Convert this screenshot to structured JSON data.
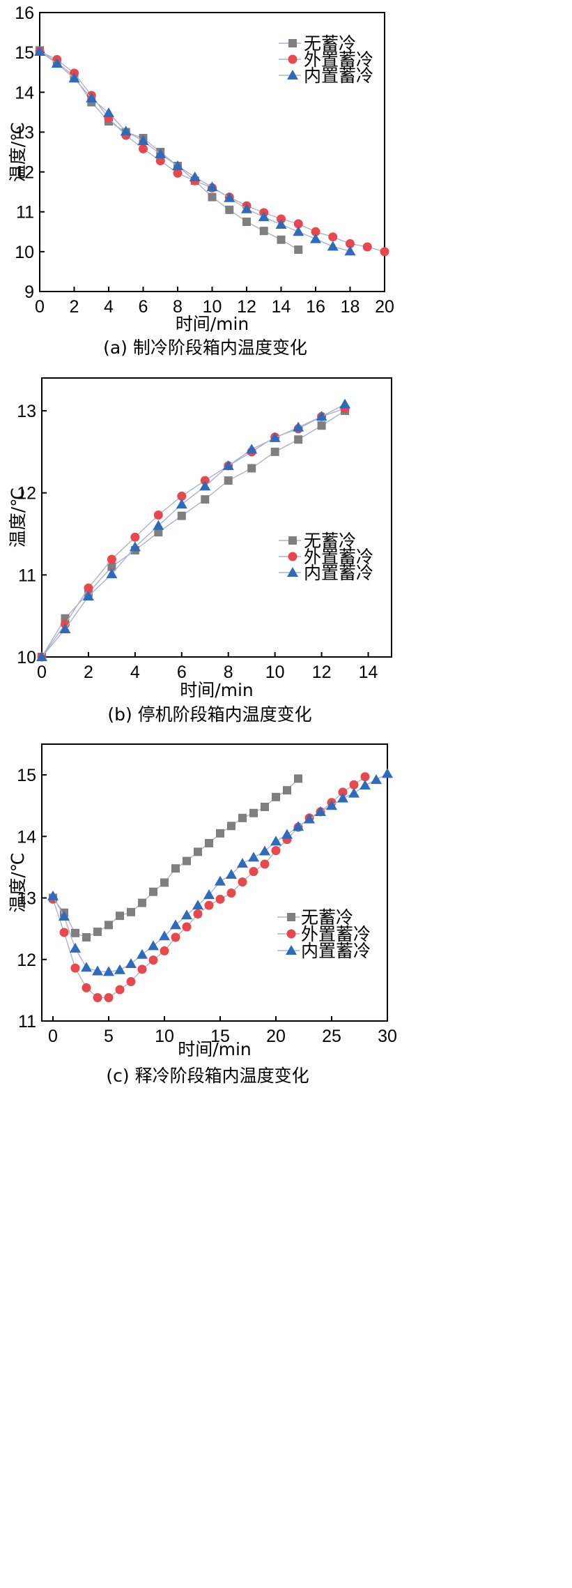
{
  "colors": {
    "无蓄冷": "#7f7f7f",
    "外置蓄冷": "#e8474d",
    "内置蓄冷": "#2e6bbd",
    "line": "#a8b4c8"
  },
  "chart_data": [
    {
      "type": "line",
      "caption": "(a) 制冷阶段箱内温度变化",
      "xlabel": "时间/min",
      "ylabel": "温度/℃",
      "xlim": [
        0,
        20
      ],
      "ylim": [
        9,
        16
      ],
      "xticks": [
        0,
        2,
        4,
        6,
        8,
        10,
        12,
        14,
        16,
        18,
        20
      ],
      "yticks": [
        9,
        10,
        11,
        12,
        13,
        14,
        15,
        16
      ],
      "legend": "upper-right",
      "series": [
        {
          "name": "无蓄冷",
          "marker": "square",
          "x": [
            0,
            1,
            2,
            3,
            4,
            5,
            6,
            7,
            8,
            9,
            10,
            11,
            12,
            13,
            14,
            15
          ],
          "y": [
            15.05,
            14.75,
            14.4,
            13.75,
            13.27,
            13.0,
            12.85,
            12.5,
            12.15,
            11.78,
            11.37,
            11.05,
            10.75,
            10.52,
            10.3,
            10.05
          ]
        },
        {
          "name": "外置蓄冷",
          "marker": "circle",
          "x": [
            0,
            1,
            2,
            3,
            4,
            5,
            6,
            7,
            8,
            9,
            10,
            11,
            12,
            13,
            14,
            15,
            16,
            17,
            18,
            19,
            20
          ],
          "y": [
            15.03,
            14.82,
            14.48,
            13.92,
            13.35,
            12.92,
            12.58,
            12.28,
            11.97,
            11.78,
            11.6,
            11.37,
            11.15,
            10.98,
            10.82,
            10.7,
            10.5,
            10.37,
            10.2,
            10.12,
            10.0
          ]
        },
        {
          "name": "内置蓄冷",
          "marker": "triangle",
          "x": [
            0,
            1,
            2,
            3,
            4,
            5,
            6,
            7,
            8,
            9,
            10,
            11,
            12,
            13,
            14,
            15,
            16,
            17,
            18
          ],
          "y": [
            15.02,
            14.72,
            14.35,
            13.85,
            13.48,
            13.02,
            12.78,
            12.45,
            12.15,
            11.87,
            11.62,
            11.35,
            11.07,
            10.87,
            10.68,
            10.5,
            10.32,
            10.13,
            10.01
          ]
        }
      ]
    },
    {
      "type": "line",
      "caption": "(b) 停机阶段箱内温度变化",
      "xlabel": "时间/min",
      "ylabel": "温度/℃",
      "xlim": [
        0,
        15
      ],
      "ylim": [
        10,
        13.4
      ],
      "xticks": [
        0,
        2,
        4,
        6,
        8,
        10,
        12,
        14
      ],
      "yticks": [
        10,
        11,
        12,
        13
      ],
      "legend": "right",
      "series": [
        {
          "name": "无蓄冷",
          "marker": "square",
          "x": [
            0,
            1,
            2,
            3,
            4,
            5,
            6,
            7,
            8,
            9,
            10,
            11,
            12,
            13
          ],
          "y": [
            10.0,
            10.47,
            10.78,
            11.1,
            11.3,
            11.52,
            11.72,
            11.92,
            12.15,
            12.3,
            12.5,
            12.65,
            12.82,
            13.0
          ]
        },
        {
          "name": "外置蓄冷",
          "marker": "circle",
          "x": [
            0,
            1,
            2,
            3,
            4,
            5,
            6,
            7,
            8,
            9,
            10,
            11,
            12,
            13
          ],
          "y": [
            10.0,
            10.4,
            10.84,
            11.19,
            11.46,
            11.73,
            11.96,
            12.15,
            12.33,
            12.5,
            12.68,
            12.78,
            12.93,
            13.03
          ]
        },
        {
          "name": "内置蓄冷",
          "marker": "triangle",
          "x": [
            0,
            1,
            2,
            3,
            4,
            5,
            6,
            7,
            8,
            9,
            10,
            11,
            12,
            13
          ],
          "y": [
            10.0,
            10.34,
            10.74,
            11.01,
            11.34,
            11.6,
            11.86,
            12.08,
            12.33,
            12.53,
            12.67,
            12.8,
            12.93,
            13.08
          ]
        }
      ]
    },
    {
      "type": "line",
      "caption": "(c) 释冷阶段箱内温度变化",
      "xlabel": "时间/min",
      "ylabel": "温度/℃",
      "xlim": [
        -1,
        30
      ],
      "ylim": [
        11,
        15.5
      ],
      "xticks": [
        0,
        5,
        10,
        15,
        20,
        25,
        30
      ],
      "yticks": [
        11,
        12,
        13,
        14,
        15
      ],
      "legend": "lower-right",
      "series": [
        {
          "name": "无蓄冷",
          "marker": "square",
          "x": [
            0,
            1,
            2,
            3,
            4,
            5,
            6,
            7,
            8,
            9,
            10,
            11,
            12,
            13,
            14,
            15,
            16,
            17,
            18,
            19,
            20,
            21,
            22
          ],
          "y": [
            13.0,
            12.76,
            12.43,
            12.36,
            12.45,
            12.56,
            12.71,
            12.77,
            12.92,
            13.1,
            13.25,
            13.48,
            13.6,
            13.75,
            13.89,
            14.05,
            14.17,
            14.3,
            14.38,
            14.48,
            14.64,
            14.75,
            14.94
          ]
        },
        {
          "name": "外置蓄冷",
          "marker": "circle",
          "x": [
            0,
            1,
            2,
            3,
            4,
            5,
            6,
            7,
            8,
            9,
            10,
            11,
            12,
            13,
            14,
            15,
            16,
            17,
            18,
            19,
            20,
            21,
            22,
            23,
            24,
            25,
            26,
            27,
            28
          ],
          "y": [
            12.98,
            12.44,
            11.86,
            11.54,
            11.38,
            11.38,
            11.51,
            11.64,
            11.84,
            11.99,
            12.14,
            12.36,
            12.53,
            12.74,
            12.88,
            12.98,
            13.08,
            13.26,
            13.43,
            13.55,
            13.77,
            13.95,
            14.15,
            14.3,
            14.4,
            14.55,
            14.72,
            14.84,
            14.97
          ]
        },
        {
          "name": "内置蓄冷",
          "marker": "triangle",
          "x": [
            0,
            1,
            2,
            3,
            4,
            5,
            6,
            7,
            8,
            9,
            10,
            11,
            12,
            13,
            14,
            15,
            16,
            17,
            18,
            19,
            20,
            21,
            22,
            23,
            24,
            25,
            26,
            27,
            28,
            29,
            30
          ],
          "y": [
            13.03,
            12.7,
            12.18,
            11.87,
            11.81,
            11.8,
            11.83,
            11.93,
            12.08,
            12.22,
            12.38,
            12.56,
            12.72,
            12.88,
            13.05,
            13.27,
            13.38,
            13.56,
            13.66,
            13.76,
            13.92,
            14.03,
            14.16,
            14.28,
            14.4,
            14.5,
            14.62,
            14.7,
            14.83,
            14.92,
            15.02
          ]
        }
      ]
    }
  ]
}
